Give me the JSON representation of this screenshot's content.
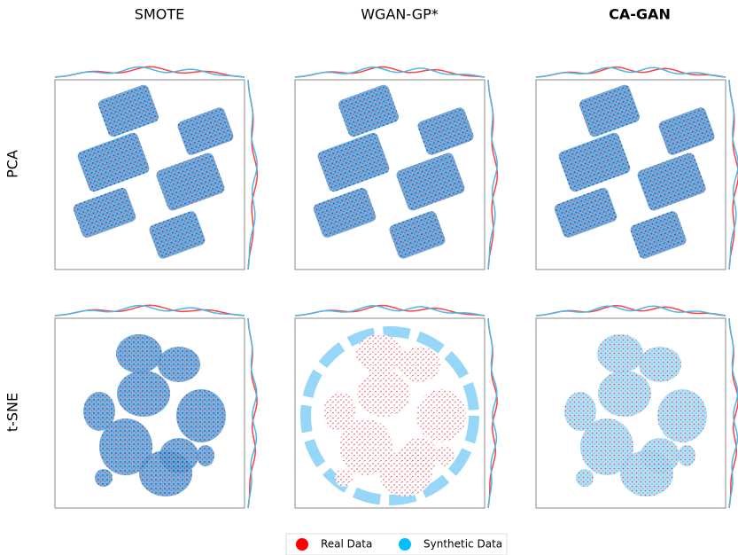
{
  "columns": [
    "SMOTE",
    "WGAN-GP*",
    "CA-GAN"
  ],
  "rows": [
    "PCA",
    "t-SNE"
  ],
  "legend": [
    {
      "label": "Real Data",
      "color": "#ff0000"
    },
    {
      "label": "Synthetic Data",
      "color": "#00bfff"
    }
  ]
}
